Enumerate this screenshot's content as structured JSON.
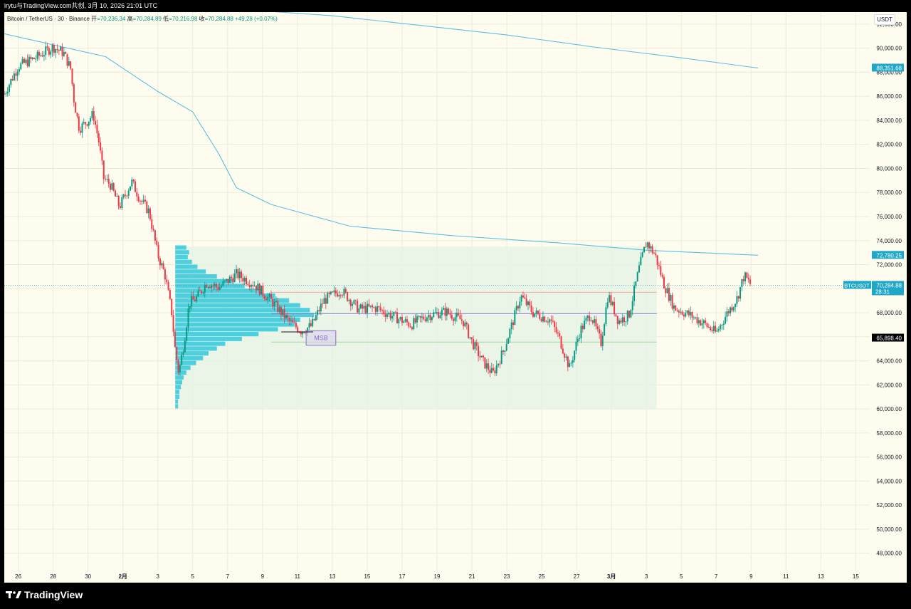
{
  "header": {
    "caption": "irytu与TradingView.com共创, 3月 10, 2026 21:01 UTC"
  },
  "legend": {
    "symbol": "Bitcoin / TetherUS · 30 · Binance",
    "o_label": "开",
    "o_value": "=70,236.34",
    "h_label": "高",
    "h_value": "=70,284.89",
    "l_label": "低",
    "l_value": "=70,216.98",
    "c_label": "收",
    "c_value": "=70,284.88",
    "change": "+49.28 (+0.07%)"
  },
  "currency_button": "USDT",
  "brand": "TradingView",
  "colors": {
    "background": "#fdfcef",
    "ma_line": "#5bc0de",
    "candle_up": "#089981",
    "candle_down": "#f23645",
    "volume_profile": "#26c6da",
    "value_area_fill": "#e3f3e6",
    "price_label_bg": "#1fa7c7",
    "blue_line": "#8a7fd6",
    "red_line": "#f4a6a6",
    "green_line": "#9ed79a",
    "msb_box": "#b39ddb"
  },
  "chart_data": {
    "type": "candlestick",
    "title": "Bitcoin / TetherUS · 30 · Binance",
    "ylim": [
      46500,
      93000
    ],
    "y_ticks": [
      48000,
      50000,
      52000,
      54000,
      56000,
      58000,
      60000,
      62000,
      64000,
      66000,
      68000,
      70000,
      72000,
      74000,
      76000,
      78000,
      80000,
      82000,
      84000,
      86000,
      88000,
      90000,
      92000
    ],
    "y_tick_labels": [
      "48,000.00",
      "50,000.00",
      "52,000.00",
      "54,000.00",
      "56,000.00",
      "58,000.00",
      "60,000.00",
      "62,000.00",
      "64,000.00",
      "66,000.00",
      "68,000.00",
      "70,000.00",
      "72,000.00",
      "74,000.00",
      "76,000.00",
      "78,000.00",
      "80,000.00",
      "82,000.00",
      "84,000.00",
      "86,000.00",
      "88,000.00",
      "90,000.00",
      "92,000.00"
    ],
    "x_day_range": [
      -3.8,
      45.8
    ],
    "x_ticks": [
      {
        "day": -3,
        "label": "26"
      },
      {
        "day": -1,
        "label": "28"
      },
      {
        "day": 1,
        "label": "30"
      },
      {
        "day": 3,
        "label": "2月"
      },
      {
        "day": 5,
        "label": "3"
      },
      {
        "day": 7,
        "label": "5"
      },
      {
        "day": 9,
        "label": "7"
      },
      {
        "day": 11,
        "label": "9"
      },
      {
        "day": 13,
        "label": "11"
      },
      {
        "day": 15,
        "label": "13"
      },
      {
        "day": 17,
        "label": "15"
      },
      {
        "day": 19,
        "label": "17"
      },
      {
        "day": 21,
        "label": "19"
      },
      {
        "day": 23,
        "label": "21"
      },
      {
        "day": 25,
        "label": "23"
      },
      {
        "day": 27,
        "label": "25"
      },
      {
        "day": 29,
        "label": "27"
      },
      {
        "day": 31,
        "label": "3月"
      },
      {
        "day": 33,
        "label": "3"
      },
      {
        "day": 35,
        "label": "5"
      },
      {
        "day": 37,
        "label": "7"
      },
      {
        "day": 39,
        "label": "9"
      },
      {
        "day": 41,
        "label": "11"
      },
      {
        "day": 43,
        "label": "13"
      },
      {
        "day": 45,
        "label": "15"
      }
    ],
    "price_path": [
      [
        -3.8,
        86200
      ],
      [
        -3.0,
        88500
      ],
      [
        -2.0,
        89200
      ],
      [
        -1.0,
        90100
      ],
      [
        -0.4,
        89600
      ],
      [
        0.0,
        88300
      ],
      [
        0.2,
        85600
      ],
      [
        0.5,
        83300
      ],
      [
        1.0,
        84000
      ],
      [
        1.3,
        84500
      ],
      [
        1.6,
        82400
      ],
      [
        1.9,
        79200
      ],
      [
        2.3,
        78600
      ],
      [
        2.8,
        76800
      ],
      [
        3.5,
        78900
      ],
      [
        4.0,
        77400
      ],
      [
        4.5,
        76400
      ],
      [
        5.0,
        72800
      ],
      [
        5.4,
        71200
      ],
      [
        5.8,
        68000
      ],
      [
        6.0,
        64800
      ],
      [
        6.2,
        63000
      ],
      [
        6.5,
        65500
      ],
      [
        6.8,
        68800
      ],
      [
        7.2,
        69200
      ],
      [
        7.8,
        70500
      ],
      [
        8.5,
        70100
      ],
      [
        9.5,
        71200
      ],
      [
        10.5,
        70400
      ],
      [
        11.5,
        69000
      ],
      [
        12.5,
        67300
      ],
      [
        13.2,
        66500
      ],
      [
        13.8,
        66900
      ],
      [
        14.5,
        69000
      ],
      [
        15.5,
        69900
      ],
      [
        16.5,
        68300
      ],
      [
        17.5,
        68400
      ],
      [
        18.5,
        67700
      ],
      [
        19.5,
        67000
      ],
      [
        20.5,
        67800
      ],
      [
        21.5,
        68100
      ],
      [
        22.5,
        67300
      ],
      [
        23.0,
        65600
      ],
      [
        23.6,
        64000
      ],
      [
        24.2,
        62900
      ],
      [
        24.8,
        64800
      ],
      [
        25.4,
        67500
      ],
      [
        25.8,
        69400
      ],
      [
        26.5,
        68000
      ],
      [
        27.5,
        67400
      ],
      [
        28.0,
        65900
      ],
      [
        28.6,
        63400
      ],
      [
        29.2,
        66500
      ],
      [
        29.8,
        67900
      ],
      [
        30.4,
        65500
      ],
      [
        30.8,
        69500
      ],
      [
        31.4,
        67300
      ],
      [
        32.0,
        67800
      ],
      [
        32.6,
        71800
      ],
      [
        33.0,
        73900
      ],
      [
        33.5,
        72800
      ],
      [
        34.0,
        70400
      ],
      [
        34.6,
        68400
      ],
      [
        35.5,
        67800
      ],
      [
        36.3,
        67100
      ],
      [
        37.0,
        66300
      ],
      [
        37.6,
        67900
      ],
      [
        38.2,
        69200
      ],
      [
        38.6,
        71100
      ],
      [
        39.0,
        70300
      ]
    ],
    "series": [
      {
        "name": "",
        "kind": "ma",
        "points": [
          [
            -3.8,
            91200
          ],
          [
            2.0,
            89300
          ],
          [
            5.0,
            86400
          ],
          [
            7.0,
            84700
          ],
          [
            8.5,
            81200
          ],
          [
            9.5,
            78400
          ],
          [
            11.5,
            77000
          ],
          [
            13.5,
            76200
          ],
          [
            16.0,
            75200
          ],
          [
            22.0,
            74400
          ],
          [
            28.0,
            73800
          ],
          [
            33.0,
            73200
          ],
          [
            37.5,
            72900
          ],
          [
            39.4,
            72780
          ]
        ]
      },
      {
        "name": "",
        "kind": "ma",
        "points": [
          [
            10.0,
            93200
          ],
          [
            15.0,
            92700
          ],
          [
            20.0,
            91900
          ],
          [
            25.0,
            91100
          ],
          [
            30.0,
            90100
          ],
          [
            35.0,
            89200
          ],
          [
            39.4,
            88352
          ]
        ]
      }
    ],
    "horizontal_levels": [
      {
        "price": 69700,
        "kind": "red"
      },
      {
        "price": 67920,
        "kind": "blue"
      },
      {
        "price": 65560,
        "kind": "green"
      }
    ],
    "value_area": {
      "from_day": 6.0,
      "to_day": 33.6,
      "price_low": 60000,
      "price_high": 73500
    },
    "volume_profile_bins": [
      {
        "price": 73400,
        "size": 0.08
      },
      {
        "price": 73000,
        "size": 0.1
      },
      {
        "price": 72600,
        "size": 0.09
      },
      {
        "price": 72200,
        "size": 0.12
      },
      {
        "price": 71800,
        "size": 0.16
      },
      {
        "price": 71400,
        "size": 0.22
      },
      {
        "price": 71000,
        "size": 0.3
      },
      {
        "price": 70600,
        "size": 0.42
      },
      {
        "price": 70200,
        "size": 0.5
      },
      {
        "price": 69800,
        "size": 0.62
      },
      {
        "price": 69400,
        "size": 0.72
      },
      {
        "price": 69000,
        "size": 0.82
      },
      {
        "price": 68600,
        "size": 0.9
      },
      {
        "price": 68200,
        "size": 0.97
      },
      {
        "price": 67800,
        "size": 1.0
      },
      {
        "price": 67400,
        "size": 0.9
      },
      {
        "price": 67000,
        "size": 0.86
      },
      {
        "price": 66600,
        "size": 0.74
      },
      {
        "price": 66200,
        "size": 0.6
      },
      {
        "price": 65800,
        "size": 0.48
      },
      {
        "price": 65400,
        "size": 0.36
      },
      {
        "price": 65000,
        "size": 0.3
      },
      {
        "price": 64600,
        "size": 0.24
      },
      {
        "price": 64200,
        "size": 0.2
      },
      {
        "price": 63800,
        "size": 0.15
      },
      {
        "price": 63400,
        "size": 0.11
      },
      {
        "price": 63000,
        "size": 0.08
      },
      {
        "price": 62600,
        "size": 0.06
      },
      {
        "price": 62200,
        "size": 0.05
      },
      {
        "price": 61800,
        "size": 0.04
      },
      {
        "price": 61400,
        "size": 0.03
      },
      {
        "price": 61000,
        "size": 0.03
      },
      {
        "price": 60600,
        "size": 0.02
      },
      {
        "price": 60200,
        "size": 0.02
      }
    ],
    "msb_box": {
      "label": "MSB",
      "from_day": 13.5,
      "to_day": 15.2,
      "price_low": 65300,
      "price_high": 66500
    },
    "price_labels": [
      {
        "value": "88,351.68",
        "price": 88352,
        "kind": "teal"
      },
      {
        "value": "72,780.25",
        "price": 72780,
        "kind": "teal"
      },
      {
        "value": "70,284.88",
        "sub": "28:31",
        "price": 70285,
        "kind": "current",
        "tag": "BTCUSDT"
      },
      {
        "value": "65,898.40",
        "price": 65898,
        "kind": "black"
      }
    ]
  }
}
